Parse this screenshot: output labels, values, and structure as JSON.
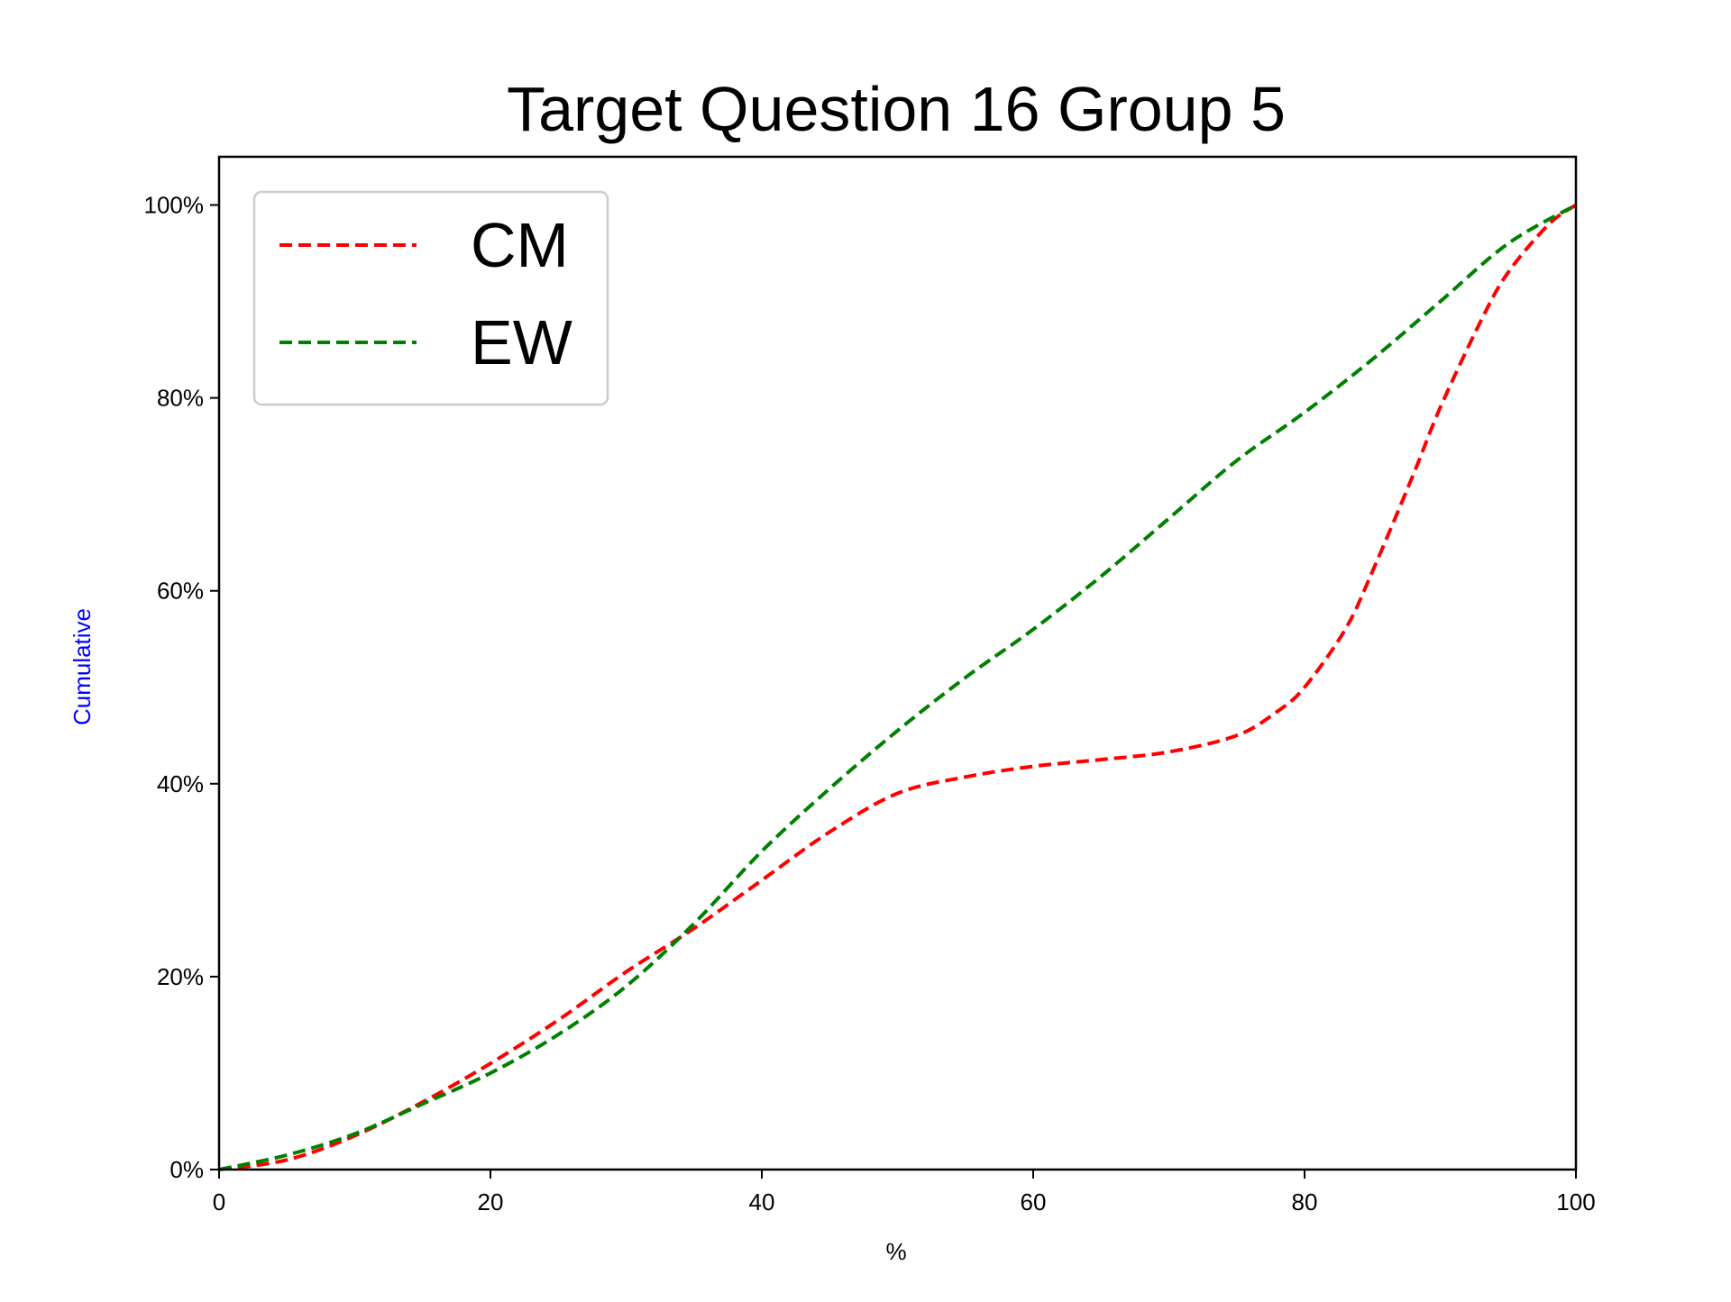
{
  "chart_data": {
    "type": "line",
    "title": "Target Question 16 Group 5",
    "xlabel": "%",
    "ylabel": "Cumulative",
    "xlim": [
      0,
      100
    ],
    "ylim": [
      0,
      1.05
    ],
    "x_ticks": [
      0,
      20,
      40,
      60,
      80,
      100
    ],
    "x_tick_labels": [
      "0",
      "20",
      "40",
      "60",
      "80",
      "100"
    ],
    "y_ticks": [
      0,
      0.2,
      0.4,
      0.6,
      0.8,
      1.0
    ],
    "y_tick_labels": [
      "0%",
      "20%",
      "40%",
      "60%",
      "80%",
      "100%"
    ],
    "grid": false,
    "legend_position": "top-left",
    "series": [
      {
        "name": "CM",
        "color": "#ff0000",
        "line_style": "dashed",
        "x": [
          0,
          5,
          10,
          15,
          20,
          25,
          30,
          35,
          40,
          45,
          50,
          55,
          60,
          65,
          70,
          75,
          78,
          80,
          83,
          85,
          88,
          90,
          93,
          95,
          98,
          100
        ],
        "y": [
          0,
          0.01,
          0.035,
          0.07,
          0.11,
          0.155,
          0.205,
          0.25,
          0.3,
          0.35,
          0.39,
          0.407,
          0.418,
          0.425,
          0.433,
          0.45,
          0.475,
          0.5,
          0.56,
          0.62,
          0.72,
          0.79,
          0.88,
          0.93,
          0.98,
          1.0
        ]
      },
      {
        "name": "EW",
        "color": "#008000",
        "line_style": "dashed",
        "x": [
          0,
          5,
          10,
          15,
          20,
          25,
          30,
          35,
          40,
          45,
          50,
          55,
          60,
          65,
          70,
          75,
          80,
          85,
          90,
          95,
          100
        ],
        "y": [
          0,
          0.015,
          0.037,
          0.068,
          0.1,
          0.14,
          0.19,
          0.255,
          0.33,
          0.395,
          0.455,
          0.51,
          0.56,
          0.615,
          0.675,
          0.735,
          0.785,
          0.84,
          0.9,
          0.96,
          1.0
        ]
      }
    ]
  }
}
